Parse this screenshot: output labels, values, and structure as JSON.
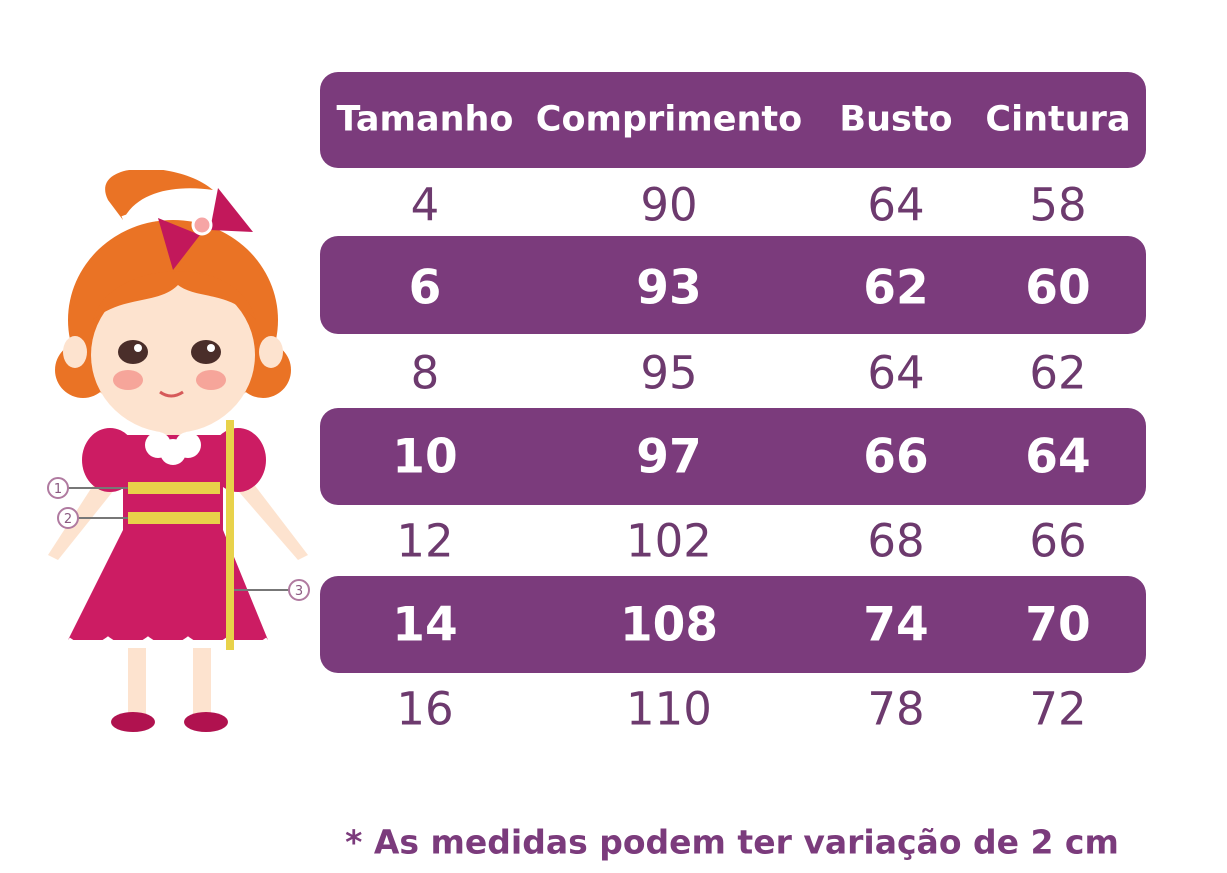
{
  "table": {
    "headers": [
      "Tamanho",
      "Comprimento",
      "Busto",
      "Cintura"
    ],
    "rows": [
      [
        "4",
        "90",
        "64",
        "58"
      ],
      [
        "6",
        "93",
        "62",
        "60"
      ],
      [
        "8",
        "95",
        "64",
        "62"
      ],
      [
        "10",
        "97",
        "66",
        "64"
      ],
      [
        "12",
        "102",
        "68",
        "66"
      ],
      [
        "14",
        "108",
        "74",
        "70"
      ],
      [
        "16",
        "110",
        "78",
        "72"
      ]
    ]
  },
  "illustration": {
    "markers": [
      "1",
      "2",
      "3"
    ]
  },
  "footnote": "* As medidas podem ter variação de 2 cm",
  "colors": {
    "band": "#7b3b7c",
    "plain_text": "#6d3a6e",
    "dress": "#cc1c63",
    "hair": "#ea7325",
    "tape": "#e8d24a"
  }
}
